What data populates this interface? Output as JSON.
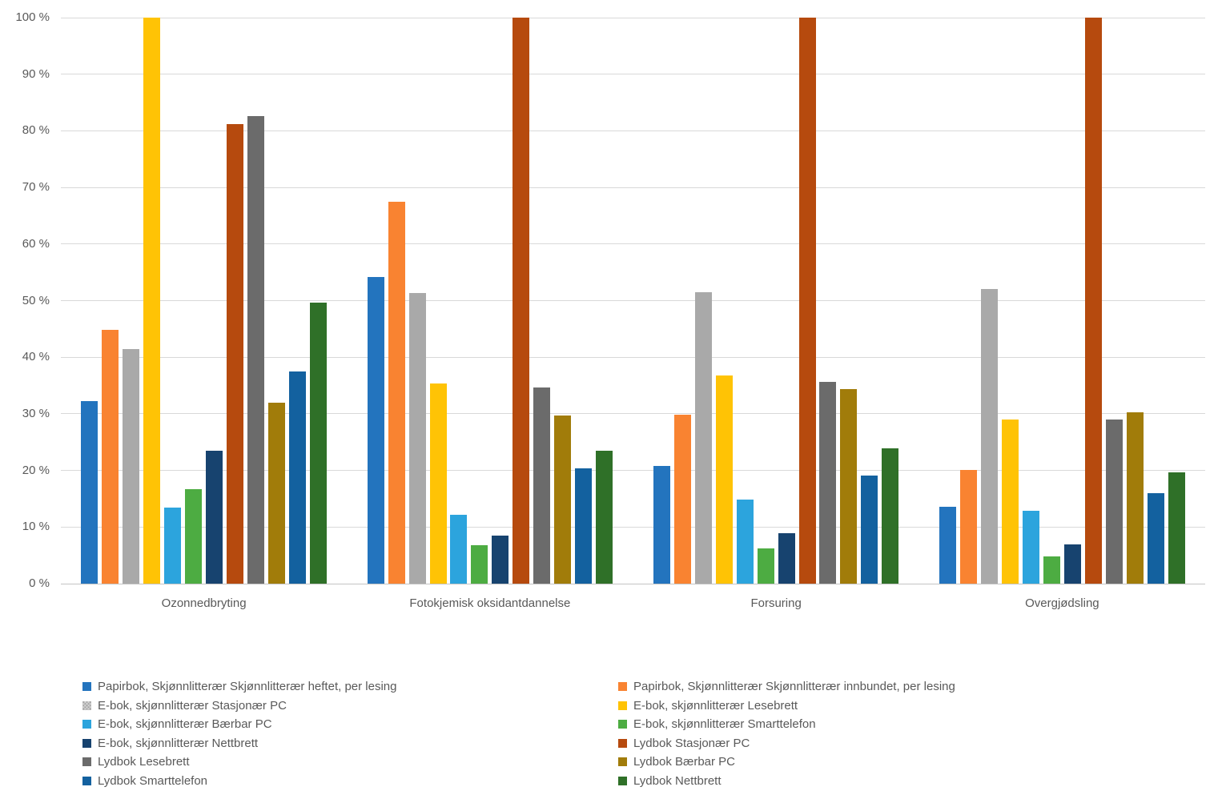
{
  "chart_data": {
    "type": "bar",
    "title": "",
    "categories": [
      "Ozonnedbryting",
      "Fotokjemisk oksidantdannelse",
      "Forsuring",
      "Overgjødsling"
    ],
    "y_ticks": [
      "0 %",
      "10 %",
      "20 %",
      "30 %",
      "40 %",
      "50 %",
      "60 %",
      "70 %",
      "80 %",
      "90 %",
      "100 %"
    ],
    "ylim": [
      0,
      100
    ],
    "ytick_step": 10,
    "grid": true,
    "legend_position": "bottom-two-columns",
    "series": [
      {
        "name": "Papirbok, Skjønnlitterær Skjønnlitterær heftet, per lesing",
        "color": "#2374BE",
        "pattern": false,
        "values": [
          32.2,
          54.2,
          20.8,
          13.6
        ]
      },
      {
        "name": "Papirbok, Skjønnlitterær Skjønnlitterær innbundet, per lesing",
        "color": "#F98331",
        "pattern": false,
        "values": [
          44.9,
          67.5,
          29.9,
          20.1
        ]
      },
      {
        "name": "E-bok, skjønnlitterær Stasjonær PC",
        "color": "#A9A9A9",
        "pattern": true,
        "values": [
          41.4,
          51.4,
          51.5,
          52.0
        ]
      },
      {
        "name": "E-bok, skjønnlitterær Lesebrett",
        "color": "#FFC305",
        "pattern": false,
        "values": [
          100,
          35.3,
          36.8,
          29.0
        ]
      },
      {
        "name": "E-bok, skjønnlitterær Bærbar PC",
        "color": "#2CA4DD",
        "pattern": false,
        "values": [
          13.5,
          12.1,
          14.8,
          12.9
        ]
      },
      {
        "name": "E-bok, skjønnlitterær Smarttelefon",
        "color": "#4DAC42",
        "pattern": false,
        "values": [
          16.7,
          6.8,
          6.2,
          4.8
        ]
      },
      {
        "name": "E-bok, skjønnlitterær Nettbrett",
        "color": "#17436F",
        "pattern": false,
        "values": [
          23.5,
          8.5,
          8.9,
          7.0
        ]
      },
      {
        "name": "Lydbok Stasjonær PC",
        "color": "#B64A0E",
        "pattern": false,
        "values": [
          81.2,
          100,
          100,
          100
        ]
      },
      {
        "name": "Lydbok Lesebrett",
        "color": "#6B6B6B",
        "pattern": false,
        "values": [
          82.6,
          34.6,
          35.6,
          29.0
        ]
      },
      {
        "name": "Lydbok Bærbar PC",
        "color": "#A17C0A",
        "pattern": false,
        "values": [
          31.9,
          29.7,
          34.4,
          30.3
        ]
      },
      {
        "name": "Lydbok Smarttelefon",
        "color": "#13619F",
        "pattern": false,
        "values": [
          37.5,
          20.4,
          19.1,
          16.0
        ]
      },
      {
        "name": "Lydbok Nettbrett",
        "color": "#2F7028",
        "pattern": false,
        "values": [
          49.6,
          23.5,
          23.9,
          19.7
        ]
      }
    ]
  }
}
